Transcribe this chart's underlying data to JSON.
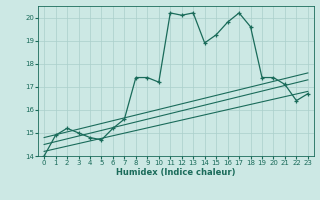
{
  "xlabel": "Humidex (Indice chaleur)",
  "background_color": "#cce8e4",
  "grid_color": "#aacfcb",
  "line_color": "#1a6b5a",
  "xlim": [
    -0.5,
    23.5
  ],
  "ylim": [
    14,
    20.5
  ],
  "yticks": [
    14,
    15,
    16,
    17,
    18,
    19,
    20
  ],
  "xticks": [
    0,
    1,
    2,
    3,
    4,
    5,
    6,
    7,
    8,
    9,
    10,
    11,
    12,
    13,
    14,
    15,
    16,
    17,
    18,
    19,
    20,
    21,
    22,
    23
  ],
  "line1_x": [
    0,
    1,
    2,
    3,
    4,
    5,
    6,
    7,
    8,
    9,
    10,
    11,
    12,
    13,
    14,
    15,
    16,
    17,
    18,
    19,
    20,
    21,
    22,
    23
  ],
  "line1_y": [
    14.0,
    14.9,
    15.2,
    15.0,
    14.8,
    14.7,
    15.2,
    15.6,
    17.4,
    17.4,
    17.2,
    20.2,
    20.1,
    20.2,
    18.9,
    19.25,
    19.8,
    20.2,
    19.6,
    17.4,
    17.4,
    17.1,
    16.4,
    16.7
  ],
  "line2_x": [
    0,
    23
  ],
  "line2_y": [
    14.8,
    17.6
  ],
  "line3_x": [
    0,
    23
  ],
  "line3_y": [
    14.5,
    17.3
  ],
  "line4_x": [
    0,
    23
  ],
  "line4_y": [
    14.2,
    16.8
  ]
}
